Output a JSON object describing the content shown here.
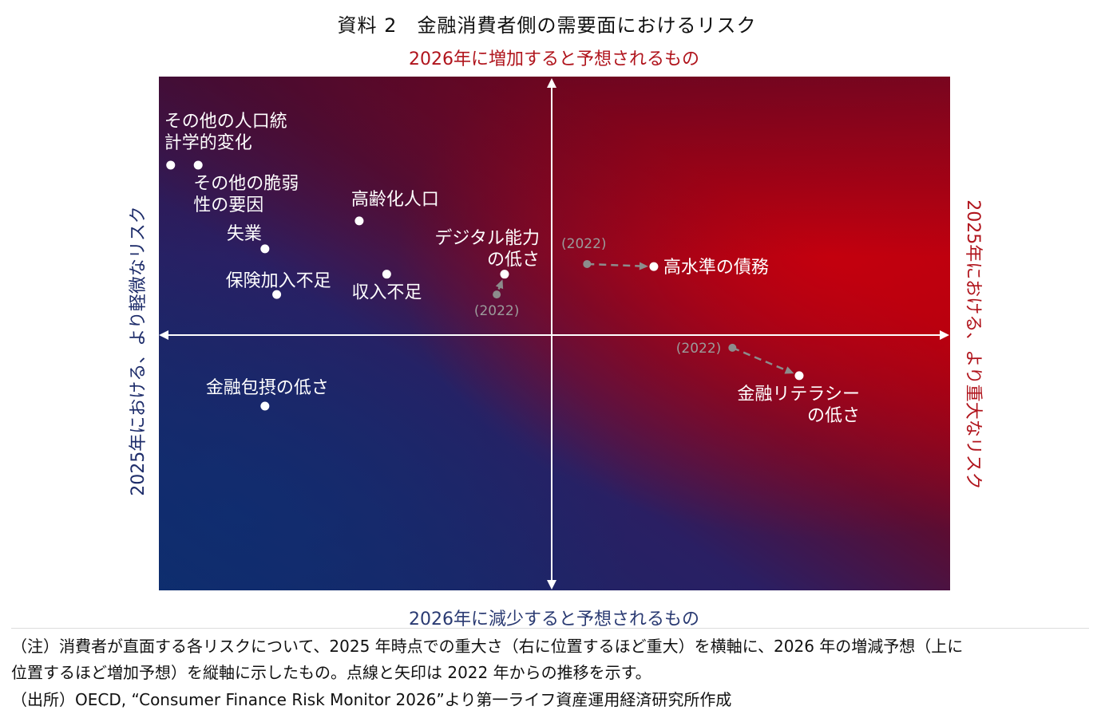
{
  "title": "資料 2　金融消費者側の需要面におけるリスク",
  "axis_labels": {
    "top": "2026年に増加すると予想されるもの",
    "bottom": "2026年に減少すると予想されるもの",
    "left": "2025年における、より軽微なリスク",
    "right": "2025年における、より重大なリスク"
  },
  "colors": {
    "red": "#c0000c",
    "navy": "#0f2c6b",
    "purple": "#3a0f33",
    "marker": "#ffffff",
    "prior_marker": "#8c8c8c",
    "top_label": "#b0141c",
    "side_label": "#1d2c6a"
  },
  "chart_data": {
    "type": "scatter",
    "x_meaning": "2025年時点での重大さ（右に位置するほど重大）",
    "y_meaning": "2026年の増減予想（上に位置するほど増加予想）",
    "xlim": [
      -1,
      1
    ],
    "ylim": [
      -1,
      1
    ],
    "grid": false,
    "points": [
      {
        "label_lines": [
          "その他の人口統",
          "計学的変化"
        ],
        "x": -0.97,
        "y": 0.67
      },
      {
        "label_lines": [
          "その他の脆弱",
          "性の要因"
        ],
        "x": -0.9,
        "y": 0.67
      },
      {
        "label_lines": [
          "高齢化人口"
        ],
        "x": -0.49,
        "y": 0.45
      },
      {
        "label_lines": [
          "失業"
        ],
        "x": -0.73,
        "y": 0.34
      },
      {
        "label_lines": [
          "保険加入不足"
        ],
        "x": -0.7,
        "y": 0.16
      },
      {
        "label_lines": [
          "収入不足"
        ],
        "x": -0.42,
        "y": 0.24
      },
      {
        "label_lines": [
          "デジタル能力",
          "の低さ"
        ],
        "x": -0.12,
        "y": 0.24,
        "prior": {
          "label": "(2022)",
          "x": -0.14,
          "y": 0.16
        }
      },
      {
        "label_lines": [
          "高水準の債務"
        ],
        "x": 0.26,
        "y": 0.27,
        "prior": {
          "label": "(2022)",
          "x": 0.09,
          "y": 0.28
        }
      },
      {
        "label_lines": [
          "金融包摂の低さ"
        ],
        "x": -0.73,
        "y": -0.28
      },
      {
        "label_lines": [
          "金融リテラシー",
          "の低さ"
        ],
        "x": 0.63,
        "y": -0.16,
        "prior": {
          "label": "(2022)",
          "x": 0.46,
          "y": -0.05
        }
      }
    ]
  },
  "notes": [
    "（注）消費者が直面する各リスクについて、2025 年時点での重大さ（右に位置するほど重大）を横軸に、2026 年の増減予想（上に",
    "位置するほど増加予想）を縦軸に示したもの。点線と矢印は 2022 年からの推移を示す。",
    "（出所）OECD, “Consumer Finance Risk Monitor 2026”より第一ライフ資産運用経済研究所作成"
  ]
}
